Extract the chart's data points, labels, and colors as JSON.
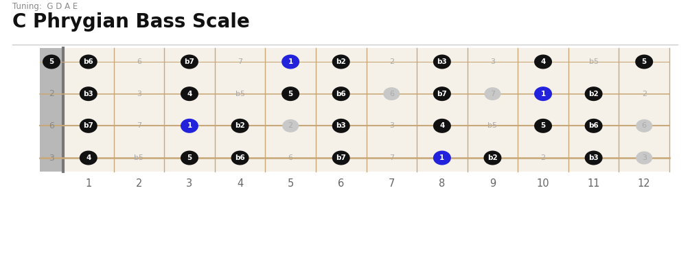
{
  "title": "C Phrygian Bass Scale",
  "tuning_label": "Tuning:  G D A E",
  "num_strings": 4,
  "num_frets": 12,
  "bg_color": "#f5f0e8",
  "nut_color": "#b8b8b8",
  "string_color": "#c8a878",
  "fret_color": "#c8a878",
  "note_black": "#111111",
  "note_blue": "#2222dd",
  "note_dot_color": "#bbbbbb",
  "string_labels_left": [
    "5",
    "2",
    "6",
    "3"
  ],
  "notes": [
    {
      "string": 0,
      "fret": 0,
      "label": "5",
      "color": "black"
    },
    {
      "string": 0,
      "fret": 1,
      "label": "b6",
      "color": "black"
    },
    {
      "string": 0,
      "fret": 3,
      "label": "b7",
      "color": "black"
    },
    {
      "string": 0,
      "fret": 5,
      "label": "1",
      "color": "blue"
    },
    {
      "string": 0,
      "fret": 6,
      "label": "b2",
      "color": "black"
    },
    {
      "string": 0,
      "fret": 8,
      "label": "b3",
      "color": "black"
    },
    {
      "string": 0,
      "fret": 10,
      "label": "4",
      "color": "black"
    },
    {
      "string": 0,
      "fret": 12,
      "label": "5",
      "color": "black"
    },
    {
      "string": 1,
      "fret": 1,
      "label": "b3",
      "color": "black"
    },
    {
      "string": 1,
      "fret": 3,
      "label": "4",
      "color": "black"
    },
    {
      "string": 1,
      "fret": 5,
      "label": "5",
      "color": "black"
    },
    {
      "string": 1,
      "fret": 6,
      "label": "b6",
      "color": "black"
    },
    {
      "string": 1,
      "fret": 8,
      "label": "b7",
      "color": "black"
    },
    {
      "string": 1,
      "fret": 10,
      "label": "1",
      "color": "blue"
    },
    {
      "string": 1,
      "fret": 11,
      "label": "b2",
      "color": "black"
    },
    {
      "string": 2,
      "fret": 1,
      "label": "b7",
      "color": "black"
    },
    {
      "string": 2,
      "fret": 3,
      "label": "1",
      "color": "blue"
    },
    {
      "string": 2,
      "fret": 4,
      "label": "b2",
      "color": "black"
    },
    {
      "string": 2,
      "fret": 6,
      "label": "b3",
      "color": "black"
    },
    {
      "string": 2,
      "fret": 8,
      "label": "4",
      "color": "black"
    },
    {
      "string": 2,
      "fret": 10,
      "label": "5",
      "color": "black"
    },
    {
      "string": 2,
      "fret": 11,
      "label": "b6",
      "color": "black"
    },
    {
      "string": 3,
      "fret": 1,
      "label": "4",
      "color": "black"
    },
    {
      "string": 3,
      "fret": 3,
      "label": "5",
      "color": "black"
    },
    {
      "string": 3,
      "fret": 4,
      "label": "b6",
      "color": "black"
    },
    {
      "string": 3,
      "fret": 6,
      "label": "b7",
      "color": "black"
    },
    {
      "string": 3,
      "fret": 8,
      "label": "1",
      "color": "blue"
    },
    {
      "string": 3,
      "fret": 9,
      "label": "b2",
      "color": "black"
    },
    {
      "string": 3,
      "fret": 11,
      "label": "b3",
      "color": "black"
    }
  ],
  "ghost_dots": [
    {
      "string": 1,
      "fret": 7
    },
    {
      "string": 1,
      "fret": 9
    },
    {
      "string": 2,
      "fret": 5
    },
    {
      "string": 2,
      "fret": 12
    },
    {
      "string": 3,
      "fret": 12
    }
  ],
  "interval_labels": [
    {
      "string": 0,
      "fret": 2,
      "label": "6"
    },
    {
      "string": 0,
      "fret": 4,
      "label": "7"
    },
    {
      "string": 0,
      "fret": 7,
      "label": "2"
    },
    {
      "string": 0,
      "fret": 9,
      "label": "3"
    },
    {
      "string": 0,
      "fret": 11,
      "label": "b5"
    },
    {
      "string": 1,
      "fret": 2,
      "label": "3"
    },
    {
      "string": 1,
      "fret": 4,
      "label": "b5"
    },
    {
      "string": 1,
      "fret": 7,
      "label": "6"
    },
    {
      "string": 1,
      "fret": 9,
      "label": "7"
    },
    {
      "string": 1,
      "fret": 12,
      "label": "2"
    },
    {
      "string": 2,
      "fret": 2,
      "label": "7"
    },
    {
      "string": 2,
      "fret": 5,
      "label": "2"
    },
    {
      "string": 2,
      "fret": 7,
      "label": "3"
    },
    {
      "string": 2,
      "fret": 9,
      "label": "b5"
    },
    {
      "string": 2,
      "fret": 12,
      "label": "6"
    },
    {
      "string": 3,
      "fret": 2,
      "label": "b5"
    },
    {
      "string": 3,
      "fret": 5,
      "label": "6"
    },
    {
      "string": 3,
      "fret": 7,
      "label": "7"
    },
    {
      "string": 3,
      "fret": 10,
      "label": "2"
    },
    {
      "string": 3,
      "fret": 12,
      "label": "3"
    }
  ],
  "figsize": [
    10.05,
    3.73
  ],
  "dpi": 100
}
